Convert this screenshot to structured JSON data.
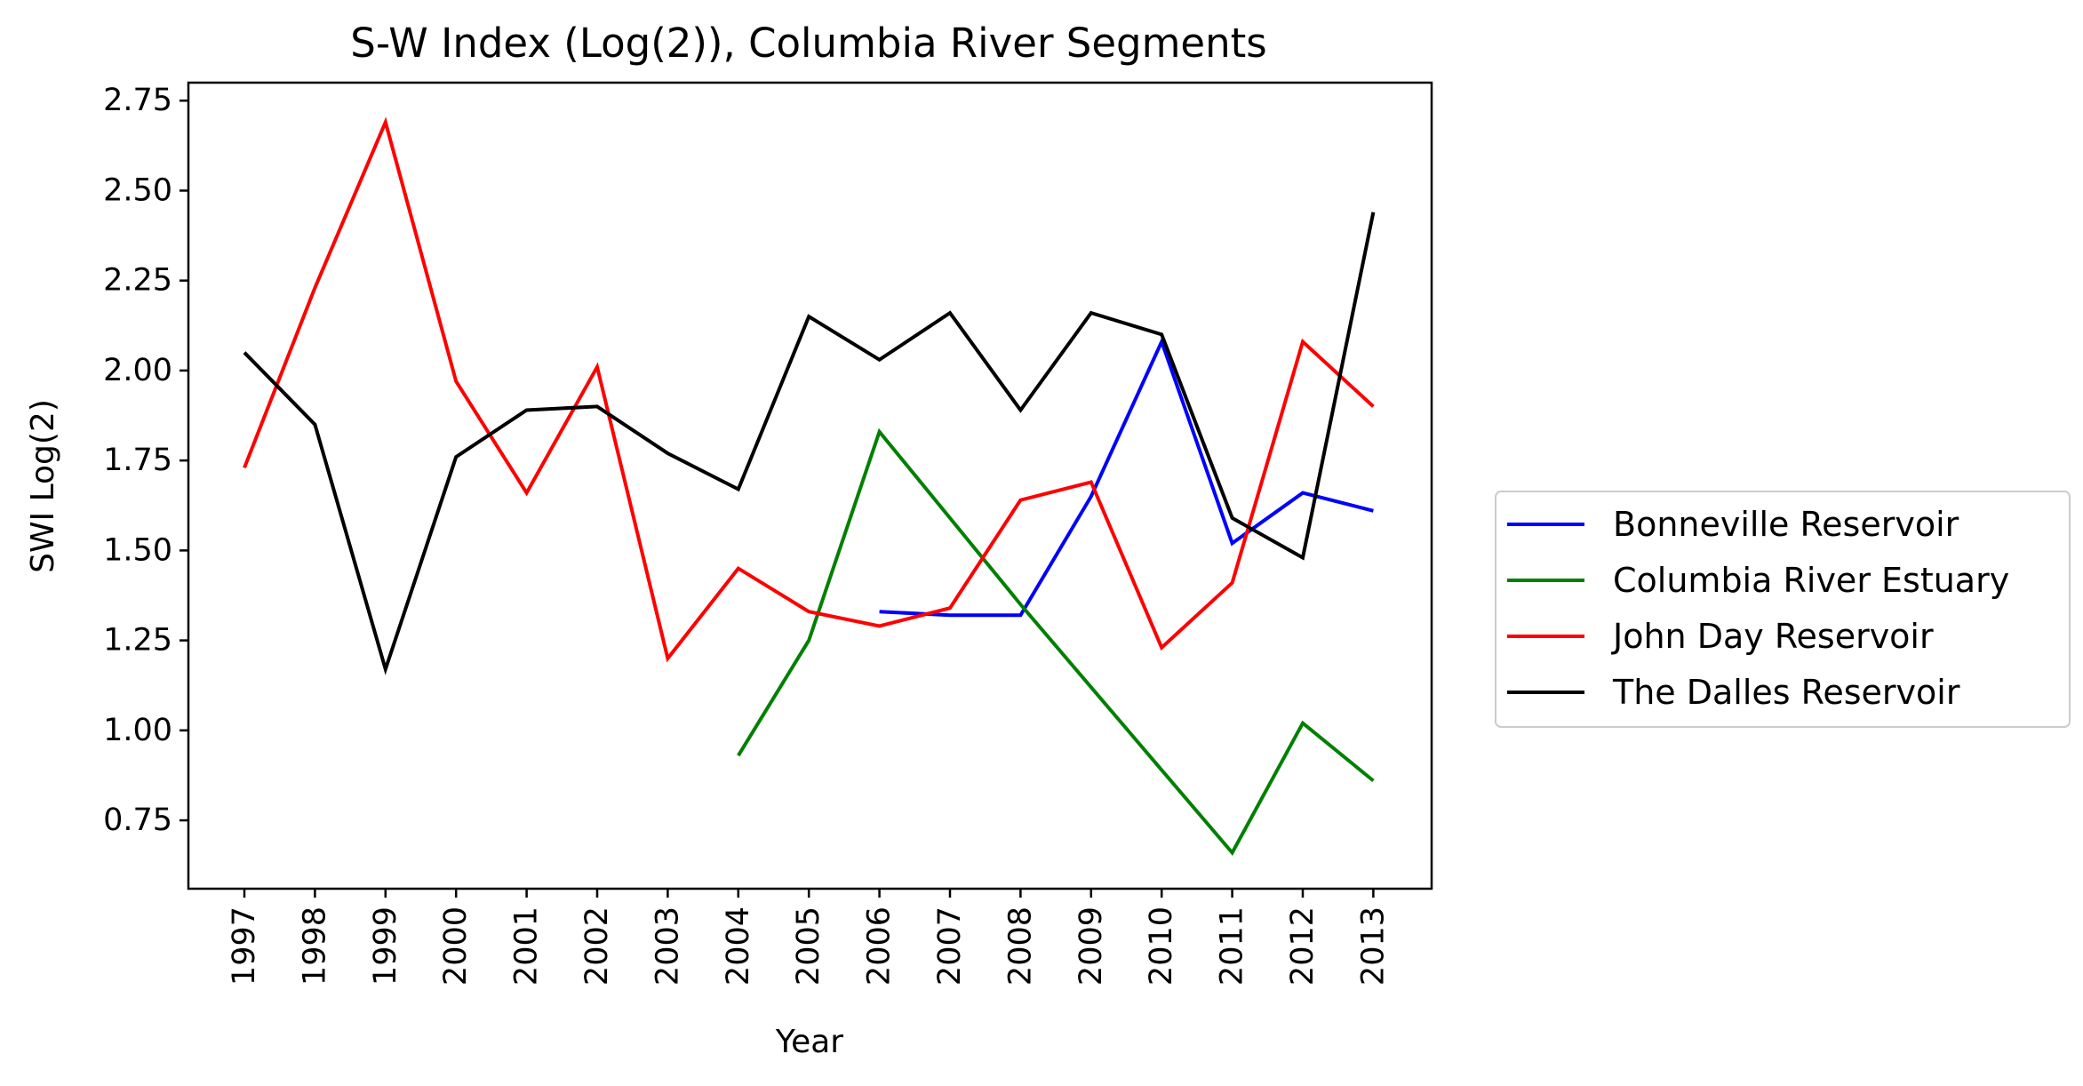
{
  "chart_data": {
    "type": "line",
    "title": "S-W Index (Log(2)), Columbia River Segments",
    "xlabel": "Year",
    "ylabel": "SWI Log(2)",
    "x": [
      1997,
      1998,
      1999,
      2000,
      2001,
      2002,
      2003,
      2004,
      2005,
      2006,
      2007,
      2008,
      2009,
      2010,
      2011,
      2012,
      2013
    ],
    "x_tick_labels": [
      "1997",
      "1998",
      "1999",
      "2000",
      "2001",
      "2002",
      "2003",
      "2004",
      "2005",
      "2006",
      "2007",
      "2008",
      "2009",
      "2010",
      "2011",
      "2012",
      "2013"
    ],
    "ylim": [
      0.56,
      2.8
    ],
    "y_ticks": [
      0.75,
      1.0,
      1.25,
      1.5,
      1.75,
      2.0,
      2.25,
      2.5,
      2.75
    ],
    "y_tick_labels": [
      "0.75",
      "1.00",
      "1.25",
      "1.50",
      "1.75",
      "2.00",
      "2.25",
      "2.50",
      "2.75"
    ],
    "grid": false,
    "legend_position": "outside-right",
    "series": [
      {
        "name": "Bonneville Reservoir",
        "color": "#0000ff",
        "x": [
          2006,
          2007,
          2008,
          2009,
          2010,
          2011,
          2012,
          2013
        ],
        "values": [
          1.33,
          1.32,
          1.32,
          1.65,
          2.08,
          1.52,
          1.66,
          1.61
        ]
      },
      {
        "name": "Columbia River Estuary",
        "color": "#008000",
        "x": [
          2004,
          2005,
          2006,
          2007,
          2008,
          2009,
          2010,
          2011,
          2012,
          2013
        ],
        "values": [
          0.93,
          1.25,
          1.83,
          1.59,
          1.35,
          1.12,
          0.89,
          0.66,
          1.02,
          0.86
        ]
      },
      {
        "name": "John Day Reservoir",
        "color": "#ff0000",
        "x": [
          1997,
          1998,
          1999,
          2000,
          2001,
          2002,
          2003,
          2004,
          2005,
          2006,
          2007,
          2008,
          2009,
          2010,
          2011,
          2012,
          2013
        ],
        "values": [
          1.73,
          2.23,
          2.69,
          1.97,
          1.66,
          2.01,
          1.2,
          1.45,
          1.33,
          1.29,
          1.34,
          1.64,
          1.69,
          1.23,
          1.41,
          2.08,
          1.9
        ]
      },
      {
        "name": "The Dalles Reservoir",
        "color": "#000000",
        "x": [
          1997,
          1998,
          1999,
          2000,
          2001,
          2002,
          2003,
          2004,
          2005,
          2006,
          2007,
          2008,
          2009,
          2010,
          2011,
          2012,
          2013
        ],
        "values": [
          2.05,
          1.85,
          1.17,
          1.76,
          1.89,
          1.9,
          1.77,
          1.67,
          2.15,
          2.03,
          2.16,
          1.89,
          2.16,
          2.1,
          1.59,
          1.48,
          2.44
        ]
      }
    ]
  }
}
